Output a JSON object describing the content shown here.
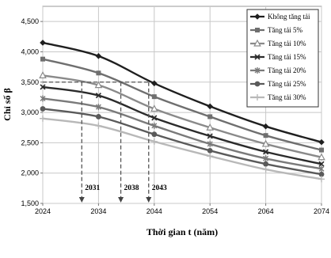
{
  "chart_data": {
    "type": "line",
    "xlabel": "Thời gian t (năm)",
    "ylabel": "Chỉ số β",
    "x": [
      2024,
      2034,
      2044,
      2054,
      2064,
      2074
    ],
    "x_tick_labels": [
      "2024",
      "2034",
      "2044",
      "2054",
      "2064",
      "2074"
    ],
    "xlim": [
      2024,
      2074
    ],
    "ylim": [
      1500,
      4750
    ],
    "y_ticks": [
      1500,
      2000,
      2500,
      3000,
      3500,
      4000,
      4500
    ],
    "y_tick_labels": [
      "1,500",
      "2,000",
      "2,500",
      "3,000",
      "3,500",
      "4,000",
      "4,500"
    ],
    "grid": true,
    "legend_position": "top-right",
    "series": [
      {
        "name": "Không tăng tải",
        "color": "#1f1f1f",
        "marker": "diamond",
        "values": [
          4150,
          3930,
          3480,
          3100,
          2770,
          2510
        ]
      },
      {
        "name": "Tăng tải 5%",
        "color": "#6f6f6f",
        "marker": "square",
        "values": [
          3880,
          3650,
          3260,
          2930,
          2620,
          2380
        ]
      },
      {
        "name": "Tăng tải 10%",
        "color": "#8a8a8a",
        "marker": "triangle",
        "values": [
          3610,
          3450,
          3060,
          2750,
          2480,
          2260
        ]
      },
      {
        "name": "Tăng tải 15%",
        "color": "#2b2b2b",
        "marker": "x",
        "values": [
          3420,
          3280,
          2910,
          2610,
          2350,
          2150
        ]
      },
      {
        "name": "Tăng tải 20%",
        "color": "#7a7a7a",
        "marker": "star",
        "values": [
          3230,
          3090,
          2780,
          2480,
          2240,
          2070
        ]
      },
      {
        "name": "Tăng tải 25%",
        "color": "#5a5a5a",
        "marker": "circle",
        "values": [
          3060,
          2930,
          2640,
          2370,
          2150,
          1980
        ]
      },
      {
        "name": "Tăng tải 30%",
        "color": "#b8b8b8",
        "marker": "plus",
        "values": [
          2900,
          2780,
          2520,
          2280,
          2060,
          1900
        ]
      }
    ],
    "annotations": [
      {
        "label": "2031",
        "x": 2031,
        "y": 3500
      },
      {
        "label": "2038",
        "x": 2038,
        "y": 3500
      },
      {
        "label": "2043",
        "x": 2043,
        "y": 3500
      }
    ],
    "threshold_y": 3500
  }
}
